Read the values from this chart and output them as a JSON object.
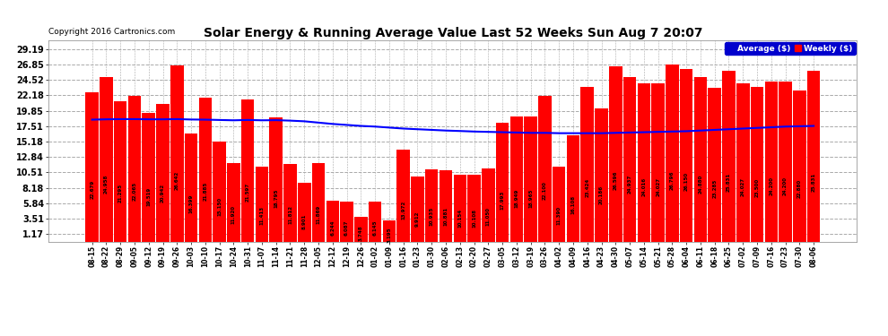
{
  "title": "Solar Energy & Running Average Value Last 52 Weeks Sun Aug 7 20:07",
  "copyright": "Copyright 2016 Cartronics.com",
  "bar_color": "#ff0000",
  "avg_line_color": "#0000ff",
  "background_color": "#ffffff",
  "plot_bg_color": "#ffffff",
  "grid_color": "#aaaaaa",
  "yticks": [
    1.17,
    3.51,
    5.84,
    8.18,
    10.51,
    12.84,
    15.18,
    17.51,
    19.85,
    22.18,
    24.52,
    26.85,
    29.19
  ],
  "legend_avg_color": "#0000cd",
  "legend_weekly_color": "#ff0000",
  "categories": [
    "08-15",
    "08-22",
    "08-29",
    "09-05",
    "09-12",
    "09-19",
    "09-26",
    "10-03",
    "10-10",
    "10-17",
    "10-24",
    "10-31",
    "11-07",
    "11-14",
    "11-21",
    "11-28",
    "12-05",
    "12-12",
    "12-19",
    "12-26",
    "01-02",
    "01-09",
    "01-16",
    "01-23",
    "01-30",
    "02-06",
    "02-13",
    "02-20",
    "02-27",
    "03-05",
    "03-12",
    "03-19",
    "03-26",
    "04-02",
    "04-09",
    "04-16",
    "04-23",
    "04-30",
    "05-07",
    "05-14",
    "05-21",
    "05-28",
    "06-04",
    "06-11",
    "06-18",
    "06-25",
    "07-02",
    "07-09",
    "07-16",
    "07-23",
    "07-30",
    "08-06"
  ],
  "values": [
    22.679,
    24.958,
    21.295,
    22.065,
    19.519,
    20.942,
    26.642,
    16.399,
    21.885,
    15.15,
    11.92,
    21.597,
    11.413,
    18.795,
    11.812,
    8.901,
    11.869,
    6.244,
    6.087,
    3.748,
    6.145,
    3.195,
    13.972,
    9.912,
    10.935,
    10.881,
    10.154,
    10.108,
    11.05,
    17.993,
    18.949,
    18.965,
    22.1,
    11.39,
    16.108,
    23.424,
    20.186,
    26.596,
    24.937,
    24.016,
    24.027,
    26.796,
    26.15,
    24.88,
    23.285,
    25.831,
    24.027,
    23.5,
    24.2,
    24.2,
    22.88,
    25.831
  ],
  "bar_labels": [
    "22.679",
    "24.958",
    "21.295",
    "22.065",
    "19.519",
    "20.942",
    "26.642",
    "16.399",
    "21.885",
    "15.150",
    "11.920",
    "21.597",
    "11.413",
    "18.795",
    "11.812",
    "8.901",
    "11.869",
    "6.244",
    "6.087",
    "3.748",
    "6.145",
    "3.195",
    "13.972",
    "9.912",
    "10.935",
    "10.881",
    "10.154",
    "10.108",
    "11.050",
    "17.993",
    "18.949",
    "18.965",
    "22.100",
    "11.390",
    "16.108",
    "23.424",
    "20.186",
    "26.596",
    "24.937",
    "24.016",
    "24.027",
    "26.796",
    "26.150",
    "24.880",
    "23.285",
    "25.831",
    "24.027",
    "23.500",
    "24.200",
    "24.200",
    "22.880",
    "25.831"
  ],
  "avg_values": [
    18.5,
    18.55,
    18.58,
    18.58,
    18.55,
    18.55,
    18.58,
    18.52,
    18.5,
    18.45,
    18.4,
    18.45,
    18.4,
    18.42,
    18.35,
    18.25,
    18.05,
    17.85,
    17.7,
    17.55,
    17.45,
    17.3,
    17.15,
    17.05,
    16.95,
    16.85,
    16.78,
    16.7,
    16.65,
    16.6,
    16.55,
    16.5,
    16.5,
    16.45,
    16.45,
    16.45,
    16.45,
    16.5,
    16.55,
    16.6,
    16.65,
    16.7,
    16.75,
    16.85,
    16.95,
    17.05,
    17.15,
    17.25,
    17.35,
    17.45,
    17.5,
    17.55
  ],
  "ylim": [
    0,
    30.5
  ],
  "bar_width": 0.92
}
